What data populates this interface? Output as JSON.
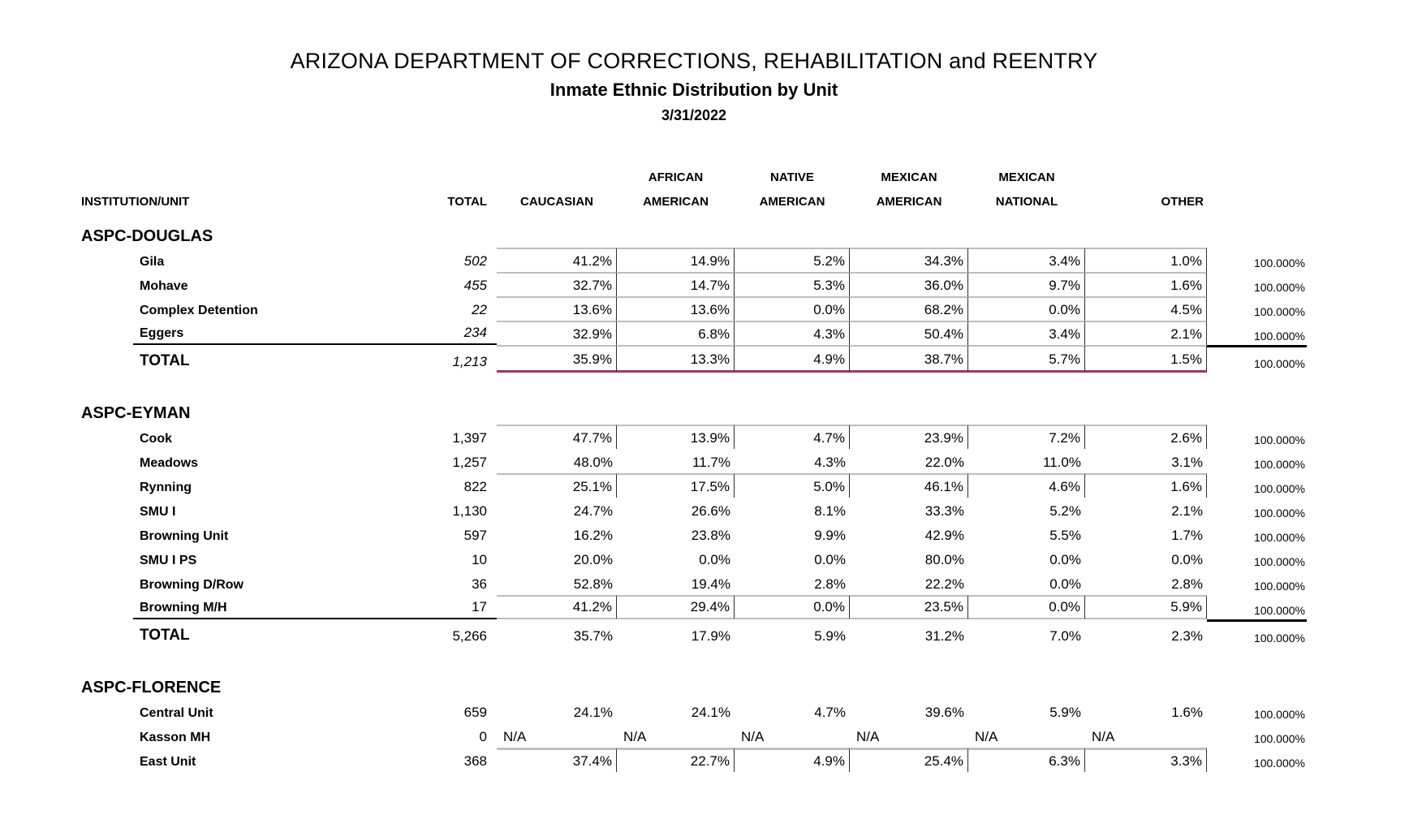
{
  "title": "ARIZONA DEPARTMENT OF CORRECTIONS, REHABILITATION and REENTRY",
  "subtitle": "Inmate Ethnic Distribution by Unit",
  "date": "3/31/2022",
  "colors": {
    "total_underline": "#9c3a60",
    "grid_line_gray": "#bdbdbd",
    "cell_divider": "#2d2d2d"
  },
  "columns": {
    "institution": "INSTITUTION/UNIT",
    "total": "TOTAL",
    "groups": [
      {
        "line1": "",
        "line2": "CAUCASIAN"
      },
      {
        "line1": "AFRICAN",
        "line2": "AMERICAN"
      },
      {
        "line1": "NATIVE",
        "line2": "AMERICAN"
      },
      {
        "line1": "MEXICAN",
        "line2": "AMERICAN"
      },
      {
        "line1": "MEXICAN",
        "line2": "NATIONAL"
      },
      {
        "line1": "",
        "line2": "OTHER"
      }
    ]
  },
  "sections": [
    {
      "name": "ASPC-DOUGLAS",
      "totals_italic": true,
      "rows": [
        {
          "unit": "Gila",
          "total": "502",
          "pcts": [
            "41.2%",
            "14.9%",
            "5.2%",
            "34.3%",
            "3.4%",
            "1.0%"
          ],
          "right": "100.000%",
          "b": true
        },
        {
          "unit": "Mohave",
          "total": "455",
          "pcts": [
            "32.7%",
            "14.7%",
            "5.3%",
            "36.0%",
            "9.7%",
            "1.6%"
          ],
          "right": "100.000%",
          "b": true
        },
        {
          "unit": "Complex Detention",
          "total": "22",
          "pcts": [
            "13.6%",
            "13.6%",
            "0.0%",
            "68.2%",
            "0.0%",
            "4.5%"
          ],
          "right": "100.000%",
          "b": true
        },
        {
          "unit": "Eggers",
          "total": "234",
          "pcts": [
            "32.9%",
            "6.8%",
            "4.3%",
            "50.4%",
            "3.4%",
            "2.1%"
          ],
          "right": "100.000%",
          "b": true,
          "bl": true
        },
        {
          "unit": "TOTAL",
          "total": "1,213",
          "pcts": [
            "35.9%",
            "13.3%",
            "4.9%",
            "38.7%",
            "5.7%",
            "1.5%"
          ],
          "right": "100.000%",
          "total_row": true,
          "b": true,
          "mr": true,
          "btr": true
        }
      ]
    },
    {
      "name": "ASPC-EYMAN",
      "totals_italic": false,
      "rows": [
        {
          "unit": "Cook",
          "total": "1,397",
          "pcts": [
            "47.7%",
            "13.9%",
            "4.7%",
            "23.9%",
            "7.2%",
            "2.6%"
          ],
          "right": "100.000%",
          "b": true
        },
        {
          "unit": "Meadows",
          "total": "1,257",
          "pcts": [
            "48.0%",
            "11.7%",
            "4.3%",
            "22.0%",
            "11.0%",
            "3.1%"
          ],
          "right": "100.000%"
        },
        {
          "unit": "Rynning",
          "total": "822",
          "pcts": [
            "25.1%",
            "17.5%",
            "5.0%",
            "46.1%",
            "4.6%",
            "1.6%"
          ],
          "right": "100.000%",
          "b": true
        },
        {
          "unit": "SMU I",
          "total": "1,130",
          "pcts": [
            "24.7%",
            "26.6%",
            "8.1%",
            "33.3%",
            "5.2%",
            "2.1%"
          ],
          "right": "100.000%"
        },
        {
          "unit": "Browning Unit",
          "total": "597",
          "pcts": [
            "16.2%",
            "23.8%",
            "9.9%",
            "42.9%",
            "5.5%",
            "1.7%"
          ],
          "right": "100.000%"
        },
        {
          "unit": "SMU I PS",
          "total": "10",
          "pcts": [
            "20.0%",
            "0.0%",
            "0.0%",
            "80.0%",
            "0.0%",
            "0.0%"
          ],
          "right": "100.000%"
        },
        {
          "unit": "Browning D/Row",
          "total": "36",
          "pcts": [
            "52.8%",
            "19.4%",
            "2.8%",
            "22.2%",
            "0.0%",
            "2.8%"
          ],
          "right": "100.000%"
        },
        {
          "unit": "Browning M/H",
          "total": "17",
          "pcts": [
            "41.2%",
            "29.4%",
            "0.0%",
            "23.5%",
            "0.0%",
            "5.9%"
          ],
          "right": "100.000%",
          "b": true,
          "gb": true,
          "bl": true
        },
        {
          "unit": "TOTAL",
          "total": "5,266",
          "pcts": [
            "35.7%",
            "17.9%",
            "5.9%",
            "31.2%",
            "7.0%",
            "2.3%"
          ],
          "right": "100.000%",
          "total_row": true,
          "btr": true
        }
      ]
    },
    {
      "name": "ASPC-FLORENCE",
      "totals_italic": false,
      "rows": [
        {
          "unit": "Central Unit",
          "total": "659",
          "pcts": [
            "24.1%",
            "24.1%",
            "4.7%",
            "39.6%",
            "5.9%",
            "1.6%"
          ],
          "right": "100.000%"
        },
        {
          "unit": "Kasson MH",
          "total": "0",
          "pcts": [
            "N/A",
            "N/A",
            "N/A",
            "N/A",
            "N/A",
            "N/A"
          ],
          "right": "100.000%",
          "na": true
        },
        {
          "unit": "East Unit",
          "total": "368",
          "pcts": [
            "37.4%",
            "22.7%",
            "4.9%",
            "25.4%",
            "6.3%",
            "3.3%"
          ],
          "right": "100.000%",
          "b": true,
          "tt": true
        }
      ]
    }
  ]
}
